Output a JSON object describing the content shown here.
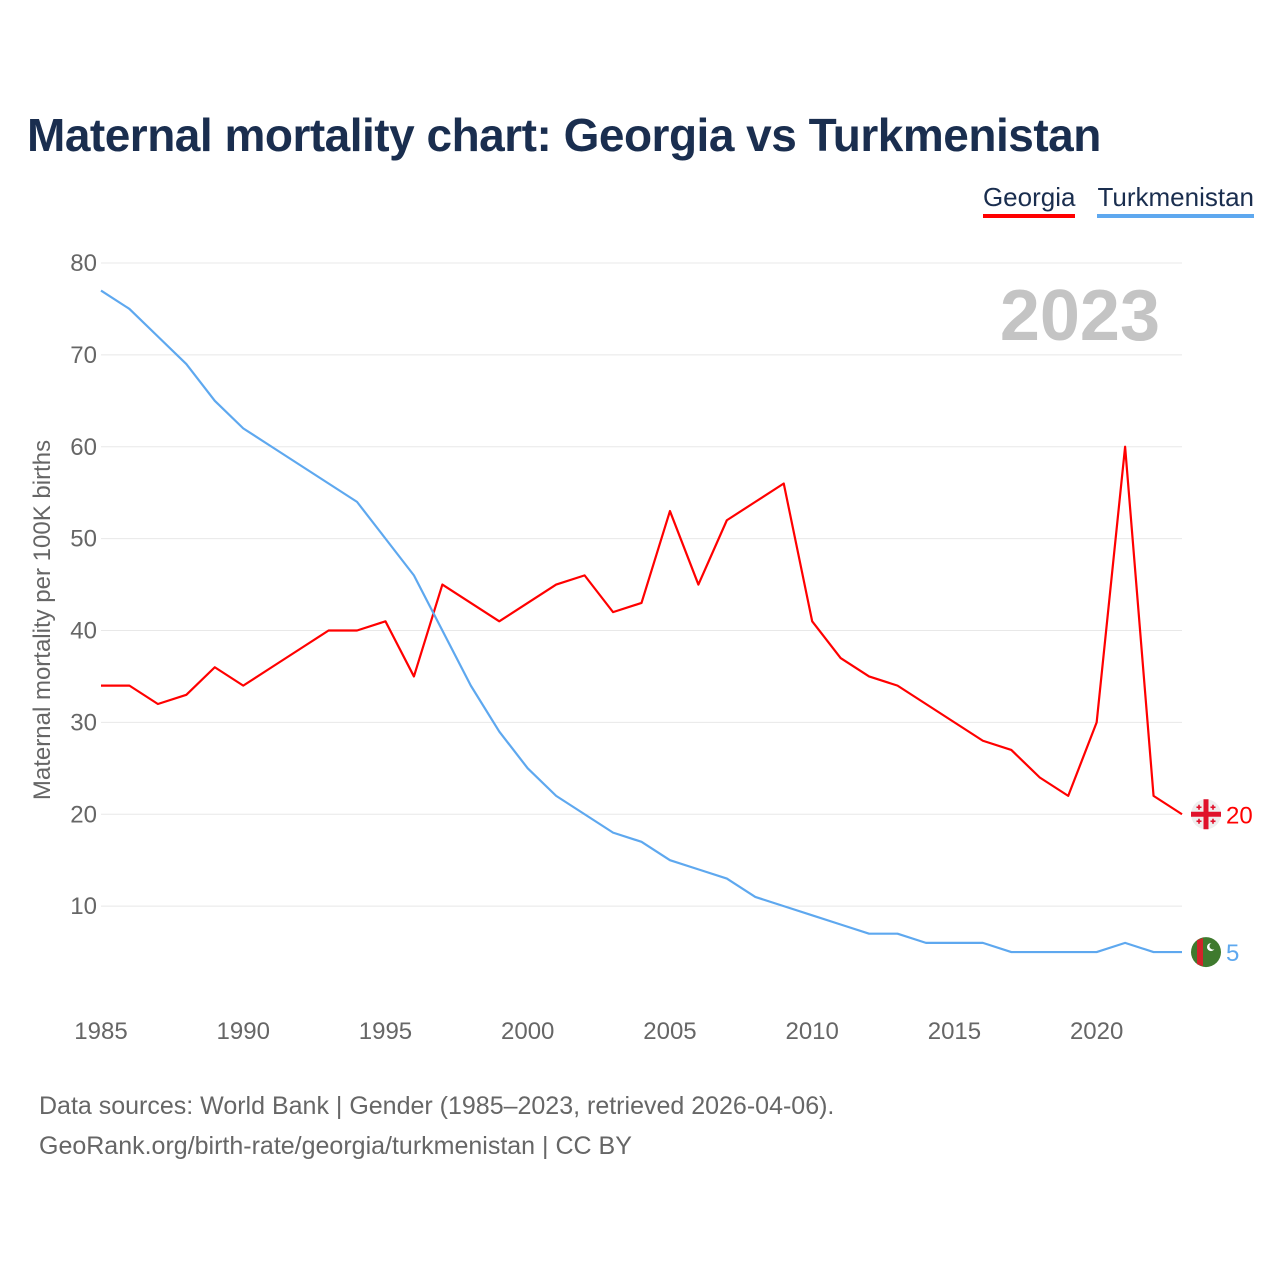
{
  "chart_data": {
    "type": "line",
    "title": "Maternal mortality chart: Georgia vs Turkmenistan",
    "ylabel": "Maternal mortality per 100K births",
    "xlabel": "",
    "year_label": "2023",
    "xlim": [
      1985,
      2023
    ],
    "ylim": [
      0,
      80
    ],
    "x_ticks": [
      "1985",
      "1990",
      "1995",
      "2000",
      "2005",
      "2010",
      "2015",
      "2020"
    ],
    "y_ticks": [
      "10",
      "20",
      "30",
      "40",
      "50",
      "60",
      "70",
      "80"
    ],
    "grid": true,
    "legend_position": "top-right",
    "x": [
      1985,
      1986,
      1987,
      1988,
      1989,
      1990,
      1991,
      1992,
      1993,
      1994,
      1995,
      1996,
      1997,
      1998,
      1999,
      2000,
      2001,
      2002,
      2003,
      2004,
      2005,
      2006,
      2007,
      2008,
      2009,
      2010,
      2011,
      2012,
      2013,
      2014,
      2015,
      2016,
      2017,
      2018,
      2019,
      2020,
      2021,
      2022,
      2023
    ],
    "series": [
      {
        "name": "Georgia",
        "color": "#ff0000",
        "end_label": "20",
        "values": [
          34,
          34,
          32,
          33,
          36,
          34,
          36,
          38,
          40,
          40,
          41,
          35,
          45,
          43,
          41,
          43,
          45,
          46,
          42,
          43,
          53,
          45,
          52,
          54,
          56,
          41,
          37,
          35,
          34,
          32,
          30,
          28,
          27,
          24,
          22,
          30,
          60,
          22,
          20
        ]
      },
      {
        "name": "Turkmenistan",
        "color": "#5ea8ef",
        "end_label": "5",
        "values": [
          77,
          75,
          72,
          69,
          65,
          62,
          60,
          58,
          56,
          54,
          50,
          46,
          40,
          34,
          29,
          25,
          22,
          20,
          18,
          17,
          15,
          14,
          13,
          11,
          10,
          9,
          8,
          7,
          7,
          6,
          6,
          6,
          5,
          5,
          5,
          5,
          6,
          5,
          5
        ]
      }
    ]
  },
  "footer": {
    "line1": "Data sources: World Bank | Gender (1985–2023, retrieved 2026-04-06).",
    "line2": "GeoRank.org/birth-rate/georgia/turkmenistan | CC BY"
  }
}
